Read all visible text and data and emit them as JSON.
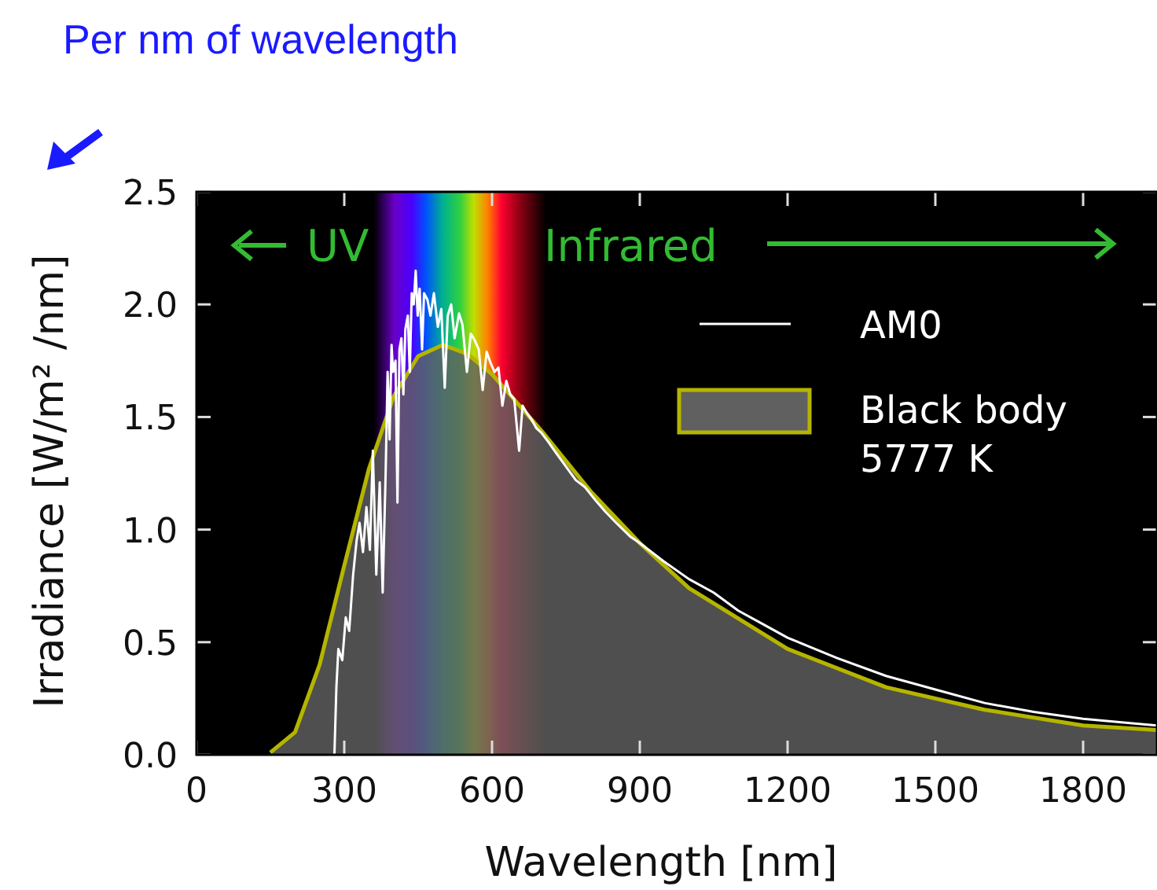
{
  "chart_data": {
    "type": "line",
    "title": "Per nm of wavelength",
    "xlabel": "Wavelength [nm]",
    "ylabel": "Irradiance [W/m² /nm]",
    "xlim": [
      0,
      1950
    ],
    "ylim": [
      0,
      2.5
    ],
    "xticks": [
      0,
      300,
      600,
      900,
      1200,
      1500,
      1800
    ],
    "yticks": [
      {
        "value": 0,
        "label": "0.0"
      },
      {
        "value": 0.5,
        "label": "0.5"
      },
      {
        "value": 1,
        "label": "1.0"
      },
      {
        "value": 1.5,
        "label": "1.5"
      },
      {
        "value": 2,
        "label": "2.0"
      },
      {
        "value": 2.5,
        "label": "2.5"
      }
    ],
    "legend": "top right",
    "grid": false,
    "annotations": [
      "UV",
      "Infrared"
    ],
    "bands": [
      {
        "axis": "x",
        "from": 360,
        "to": 710
      }
    ],
    "series": [
      {
        "name": "Black body 5777 K",
        "type": "area",
        "color": "#b5b500",
        "x": [
          150,
          200,
          250,
          300,
          350,
          400,
          450,
          500,
          550,
          600,
          700,
          800,
          900,
          1000,
          1200,
          1400,
          1600,
          1800,
          1950
        ],
        "values": [
          0.01,
          0.1,
          0.4,
          0.84,
          1.27,
          1.59,
          1.77,
          1.82,
          1.78,
          1.69,
          1.44,
          1.17,
          0.94,
          0.74,
          0.47,
          0.3,
          0.2,
          0.13,
          0.11
        ]
      },
      {
        "name": "AM0",
        "color": "#ffffff",
        "x": [
          280,
          284,
          288,
          296,
          303,
          310,
          318,
          325,
          331,
          338,
          345,
          352,
          358,
          365,
          372,
          378,
          384,
          388,
          392,
          396,
          399,
          404,
          408,
          412,
          416,
          420,
          424,
          429,
          433,
          437,
          441,
          445,
          449,
          453,
          458,
          462,
          469,
          475,
          482,
          490,
          497,
          504,
          510,
          517,
          524,
          533,
          540,
          549,
          557,
          565,
          573,
          581,
          589,
          597,
          605,
          613,
          621,
          629,
          637,
          645,
          655,
          662,
          670,
          680,
          690,
          700,
          714,
          730,
          750,
          770,
          788,
          810,
          830,
          852,
          880,
          900,
          948,
          1000,
          1050,
          1100,
          1150,
          1200,
          1300,
          1400,
          1500,
          1600,
          1700,
          1800,
          1900,
          1950
        ],
        "values": [
          0,
          0.3,
          0.47,
          0.42,
          0.61,
          0.55,
          0.8,
          0.95,
          1.03,
          0.9,
          1.1,
          0.91,
          1.35,
          0.8,
          1.21,
          0.72,
          1.25,
          1.7,
          1.4,
          1.82,
          1.7,
          1.75,
          1.12,
          1.8,
          1.85,
          1.6,
          1.89,
          1.95,
          1.7,
          2.05,
          2.0,
          2.15,
          1.95,
          2.07,
          1.8,
          2.05,
          2.02,
          1.95,
          2.05,
          1.9,
          1.98,
          1.63,
          1.95,
          2.0,
          1.85,
          1.96,
          1.91,
          1.7,
          1.87,
          1.84,
          1.8,
          1.62,
          1.79,
          1.74,
          1.7,
          1.72,
          1.55,
          1.66,
          1.6,
          1.58,
          1.35,
          1.55,
          1.52,
          1.49,
          1.45,
          1.43,
          1.39,
          1.34,
          1.28,
          1.22,
          1.19,
          1.13,
          1.08,
          1.03,
          0.97,
          0.94,
          0.86,
          0.78,
          0.72,
          0.64,
          0.58,
          0.52,
          0.43,
          0.35,
          0.29,
          0.23,
          0.19,
          0.16,
          0.14,
          0.13
        ]
      }
    ]
  }
}
